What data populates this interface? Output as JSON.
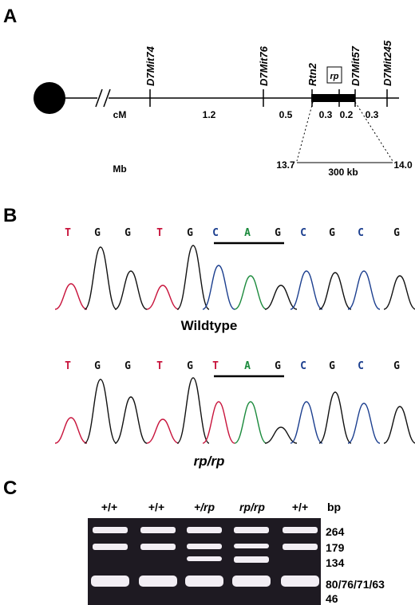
{
  "panel_a": {
    "label": "A",
    "markers": [
      "D7Mit74",
      "D7Mit76",
      "Rtn2",
      "rp",
      "D7Mit57",
      "D7Mit245"
    ],
    "cm_label": "cM",
    "cm_distances": [
      "1.2",
      "0.5",
      "0.3",
      "0.2",
      "0.3"
    ],
    "mb_label": "Mb",
    "mb_start": "13.7",
    "mb_span": "300 kb",
    "mb_end": "14.0"
  },
  "panel_b": {
    "label": "B",
    "wildtype": {
      "caption": "Wildtype",
      "bases": [
        {
          "base": "T",
          "color": "#c8143c"
        },
        {
          "base": "G",
          "color": "#111111"
        },
        {
          "base": "G",
          "color": "#111111"
        },
        {
          "base": "T",
          "color": "#c8143c"
        },
        {
          "base": "G",
          "color": "#111111"
        },
        {
          "base": "C",
          "color": "#1c3f8f"
        },
        {
          "base": "A",
          "color": "#1b8a3c"
        },
        {
          "base": "G",
          "color": "#111111"
        },
        {
          "base": "C",
          "color": "#1c3f8f"
        },
        {
          "base": "G",
          "color": "#111111"
        },
        {
          "base": "C",
          "color": "#1c3f8f"
        },
        {
          "base": "G",
          "color": "#111111"
        }
      ]
    },
    "mutant": {
      "caption": "rp/rp",
      "bases": [
        {
          "base": "T",
          "color": "#c8143c"
        },
        {
          "base": "G",
          "color": "#111111"
        },
        {
          "base": "G",
          "color": "#111111"
        },
        {
          "base": "T",
          "color": "#c8143c"
        },
        {
          "base": "G",
          "color": "#111111"
        },
        {
          "base": "T",
          "color": "#c8143c"
        },
        {
          "base": "A",
          "color": "#1b8a3c"
        },
        {
          "base": "G",
          "color": "#111111"
        },
        {
          "base": "C",
          "color": "#1c3f8f"
        },
        {
          "base": "G",
          "color": "#111111"
        },
        {
          "base": "C",
          "color": "#1c3f8f"
        },
        {
          "base": "G",
          "color": "#111111"
        }
      ]
    }
  },
  "panel_c": {
    "label": "C",
    "lanes": [
      "+/+",
      "+/+",
      "+/rp",
      "rp/rp",
      "+/+"
    ],
    "size_unit": "bp",
    "sizes": [
      "264",
      "179",
      "134",
      "80/76/71/63",
      "46"
    ]
  }
}
